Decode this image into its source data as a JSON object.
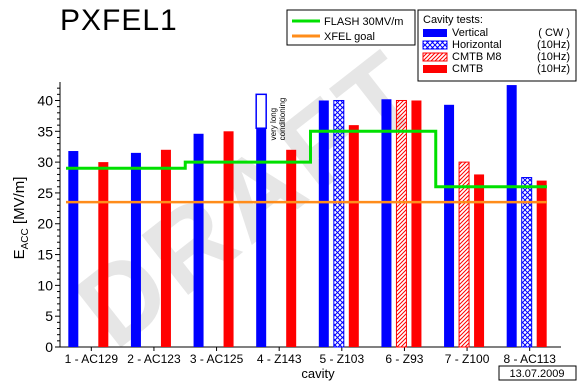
{
  "chart_data": {
    "type": "bar",
    "title": "PXFEL1",
    "xlabel": "cavity",
    "ylabel_main": "E",
    "ylabel_sub": "ACC",
    "ylabel_unit": " [MV/m]",
    "ylim": [
      0,
      43
    ],
    "yticks": [
      0,
      5,
      10,
      15,
      20,
      25,
      30,
      35,
      40
    ],
    "grid": false,
    "date_stamp": "13.07.2009",
    "watermark": "DRAFT",
    "legend_title": "Cavity tests:",
    "categories": [
      "1 - AC129",
      "2 - AC123",
      "3 - AC125",
      "4 - Z143",
      "5 - Z103",
      "6 - Z93",
      "7 - Z100",
      "8 - AC113"
    ],
    "series": [
      {
        "name": "Vertical",
        "tag": "( CW )",
        "style": "solid",
        "color": "#0000ff",
        "values": [
          31.8,
          31.5,
          34.6,
          35.5,
          40.0,
          40.2,
          39.3,
          42.5
        ]
      },
      {
        "name": "Horizontal",
        "tag": "(10Hz)",
        "style": "crosshatch",
        "color": "#0000ff",
        "values": [
          null,
          null,
          null,
          null,
          40.0,
          null,
          null,
          27.5
        ]
      },
      {
        "name": "CMTB M8",
        "tag": "(10Hz)",
        "style": "hatch",
        "color": "#ff0000",
        "values": [
          null,
          null,
          null,
          null,
          null,
          40.0,
          30.0,
          null
        ]
      },
      {
        "name": "CMTB",
        "tag": "(10Hz)",
        "style": "solid",
        "color": "#ff0000",
        "values": [
          30.0,
          32.0,
          35.0,
          32.0,
          36.0,
          40.0,
          28.0,
          27.0
        ]
      }
    ],
    "open_bar": {
      "category_index": 3,
      "from": 35.5,
      "to": 41.0,
      "color": "#0000ff",
      "label": "very long conditioning"
    },
    "lines": [
      {
        "name": "FLASH 30MV/m",
        "color": "#00e000",
        "values": [
          29.0,
          29.0,
          30.0,
          30.0,
          35.0,
          35.0,
          26.0,
          26.0
        ]
      },
      {
        "name": "XFEL goal",
        "color": "#ff8c1a",
        "value": 23.5
      }
    ]
  }
}
